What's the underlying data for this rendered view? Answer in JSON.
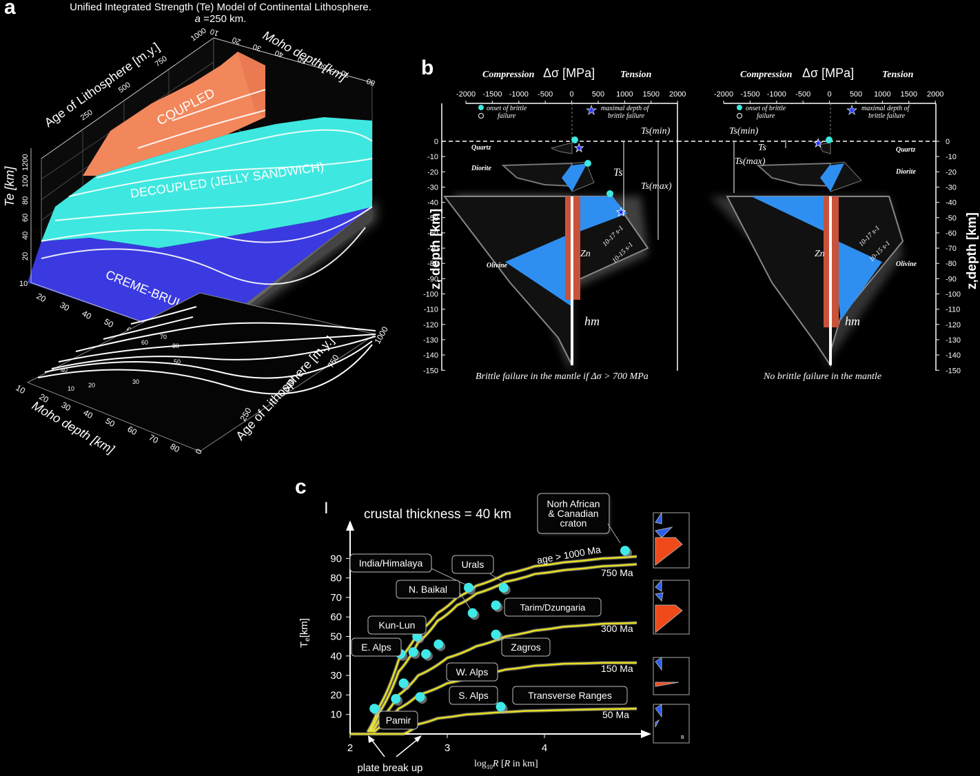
{
  "panel_labels": {
    "a": "a",
    "b": "b",
    "c": "c"
  },
  "chart_data": [
    {
      "id": "a",
      "type": "surface3d",
      "title": "Unified Integrated Strength (Te) Model of  Continental Lithosphere.",
      "subtitle_var": "a",
      "subtitle_rest": " =250 km.",
      "zlabel": "Te [km]",
      "z_ticks": [
        "1200",
        "100",
        "80",
        "60",
        "40",
        "20",
        "10"
      ],
      "age_label": "Age of Lithosphere [m.y.]",
      "age_ticks_top": [
        "250",
        "500",
        "750",
        "1000"
      ],
      "moho_label": "Moho depth [km]",
      "moho_ticks_top": [
        "10",
        "20",
        "30",
        "40",
        "50",
        "60",
        "70",
        "80"
      ],
      "moho_ticks_front": [
        "10",
        "20",
        "30",
        "40",
        "50",
        "60",
        "70",
        "80"
      ],
      "moho_ticks_base": [
        "10",
        "20",
        "30",
        "40",
        "50",
        "60",
        "70",
        "80"
      ],
      "age_ticks_base": [
        "0",
        "250",
        "500",
        "750",
        "1000"
      ],
      "regions": [
        "COUPLED",
        "DECOUPLED (JELLY SANDWICH)",
        "CREME-BRULEE"
      ],
      "contour_labels": [
        "10",
        "20",
        "30",
        "40",
        "50",
        "60",
        "70",
        "80"
      ],
      "colors": {
        "coupled": "#f2875c",
        "decoupled": "#3ee8e0",
        "creme": "#3a3ae0"
      }
    },
    {
      "id": "b",
      "type": "strength_envelope",
      "header_left": "Compression",
      "header_mid": "Δσ [MPa]",
      "header_right": "Tension",
      "x_ticks": [
        "-2000",
        "-1500",
        "-1000",
        "-500",
        "0",
        "500",
        "1000",
        "1500",
        "2000"
      ],
      "y_ticks": [
        "0",
        "-10",
        "-20",
        "-30",
        "-40",
        "-50",
        "-60",
        "-70",
        "-80",
        "-90",
        "-100",
        "-110",
        "-120",
        "-130",
        "-140",
        "-150"
      ],
      "ylabel_left": "z, depth [km]",
      "ylabel_right": "z,depth [km]",
      "legend_onset": "onset of brittle",
      "legend_onset2": "failure",
      "legend_max": "maximal depth of",
      "legend_max2": "brittle failure",
      "ts_min": "Ts(min)",
      "ts": "Ts",
      "ts_max": "Ts(max)",
      "zn": "Zn",
      "hm": "hm",
      "rate1": "10-17 s-1",
      "rate2": "10-15 s-1",
      "layers": [
        "Quartz",
        "Diorite",
        "Olivine"
      ],
      "caption_left": "Brittle failure in the mantle if Δσ > 700 MPa",
      "caption_right": "No brittle failure in the mantle"
    },
    {
      "id": "c",
      "type": "line",
      "title": "crustal thickness = 40 km",
      "xlabel": "log10R  [R in km]",
      "ylabel": "Te[km]",
      "x_ticks": [
        "2",
        "3",
        "4"
      ],
      "y_ticks": [
        "10",
        "20",
        "30",
        "40",
        "50",
        "60",
        "70",
        "80",
        "90"
      ],
      "xlim": [
        2.0,
        4.95
      ],
      "ylim": [
        0,
        105
      ],
      "series": [
        {
          "name": "age > 1000 Ma",
          "x": [
            2.18,
            2.3,
            2.5,
            2.7,
            2.9,
            3.1,
            3.3,
            3.6,
            3.9,
            4.2,
            4.6,
            4.95
          ],
          "y": [
            1,
            14,
            38,
            52,
            62,
            70,
            76,
            82,
            86,
            88,
            90,
            91
          ]
        },
        {
          "name": "750 Ma",
          "x": [
            2.2,
            2.3,
            2.5,
            2.7,
            2.9,
            3.1,
            3.3,
            3.6,
            3.9,
            4.2,
            4.6,
            4.95
          ],
          "y": [
            1,
            11,
            32,
            47,
            58,
            66,
            72,
            78,
            82,
            84,
            86,
            87
          ]
        },
        {
          "name": "300 Ma",
          "x": [
            2.22,
            2.3,
            2.5,
            2.7,
            3.0,
            3.3,
            3.6,
            3.9,
            4.2,
            4.6,
            4.95
          ],
          "y": [
            1,
            7,
            20,
            30,
            39,
            45,
            50,
            53,
            55,
            56.5,
            57
          ]
        },
        {
          "name": "150 Ma",
          "x": [
            2.24,
            2.35,
            2.5,
            2.7,
            3.0,
            3.3,
            3.6,
            3.9,
            4.2,
            4.6,
            4.95
          ],
          "y": [
            1,
            6,
            13,
            20,
            26,
            30,
            33,
            35,
            36,
            36.5,
            36.5
          ]
        },
        {
          "name": "50 Ma",
          "x": [
            2.0,
            2.55,
            2.63,
            2.7,
            2.9,
            3.2,
            3.5,
            3.8,
            4.2,
            4.6,
            4.95
          ],
          "y": [
            0,
            0,
            2,
            5,
            8,
            10,
            11,
            11.8,
            12.3,
            12.7,
            13
          ]
        }
      ],
      "points": [
        {
          "label": "North African & Canadian craton",
          "x": 4.83,
          "y": 94
        },
        {
          "label": "India/Himalaya",
          "x": 3.22,
          "y": 75
        },
        {
          "label": "Urals",
          "x": 3.58,
          "y": 75
        },
        {
          "label": "N. Baikal",
          "x": 3.26,
          "y": 62
        },
        {
          "label": "Tarim/Dzungaria",
          "x": 3.5,
          "y": 66
        },
        {
          "label": "Zagros",
          "x": 3.5,
          "y": 51
        },
        {
          "label": "Kun-Lun",
          "x": 2.69,
          "y": 50
        },
        {
          "label": "E. Alps",
          "x": 2.65,
          "y": 42
        },
        {
          "label": "",
          "x": 2.52,
          "y": 41
        },
        {
          "label": "",
          "x": 2.78,
          "y": 41
        },
        {
          "label": "",
          "x": 2.91,
          "y": 46
        },
        {
          "label": "W. Alps",
          "x": 2.55,
          "y": 26
        },
        {
          "label": "S. Alps",
          "x": 2.72,
          "y": 19
        },
        {
          "label": "",
          "x": 2.47,
          "y": 18
        },
        {
          "label": "Transverse Ranges",
          "x": 3.55,
          "y": 14
        },
        {
          "label": "Pamir",
          "x": 2.25,
          "y": 13
        }
      ],
      "callouts": {
        "craton": [
          "Norh African",
          "& Canadian",
          "craton"
        ],
        "india": "India/Himalaya",
        "urals": "Urals",
        "baikal": "N. Baikal",
        "tarim": "Tarim/Dzungaria",
        "kunlun": "Kun-Lun",
        "ealps": "E. Alps",
        "zagros": "Zagros",
        "walps": "W. Alps",
        "salps": "S. Alps",
        "transverse": "Transverse Ranges",
        "pamir": "Pamir"
      },
      "curve_labels": {
        "c1000": "age > 1000 Ma",
        "c750": "750 Ma",
        "c300": "300 Ma",
        "c150": "150 Ma",
        "c50": "50 Ma"
      },
      "break_up": "plate break up",
      "inset_letter": "B",
      "colors": {
        "curve": "#e8e020",
        "point": "#40e8e8",
        "inset_red": "#f04a1a",
        "inset_blue": "#2a5ef0"
      }
    }
  ]
}
